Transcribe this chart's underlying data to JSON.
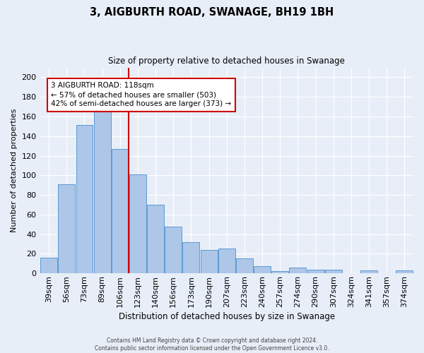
{
  "title": "3, AIGBURTH ROAD, SWANAGE, BH19 1BH",
  "subtitle": "Size of property relative to detached houses in Swanage",
  "xlabel": "Distribution of detached houses by size in Swanage",
  "ylabel": "Number of detached properties",
  "categories": [
    "39sqm",
    "56sqm",
    "73sqm",
    "89sqm",
    "106sqm",
    "123sqm",
    "140sqm",
    "156sqm",
    "173sqm",
    "190sqm",
    "207sqm",
    "223sqm",
    "240sqm",
    "257sqm",
    "274sqm",
    "290sqm",
    "307sqm",
    "324sqm",
    "341sqm",
    "357sqm",
    "374sqm"
  ],
  "values": [
    16,
    91,
    151,
    165,
    127,
    101,
    70,
    48,
    32,
    24,
    25,
    15,
    7,
    2,
    6,
    4,
    4,
    0,
    3,
    0,
    3
  ],
  "bar_color": "#aec6e8",
  "bar_edge_color": "#5b9bd5",
  "background_color": "#e8eef8",
  "grid_color": "#ffffff",
  "property_line_color": "#cc0000",
  "annotation_text": "3 AIGBURTH ROAD: 118sqm\n← 57% of detached houses are smaller (503)\n42% of semi-detached houses are larger (373) →",
  "annotation_box_color": "#ffffff",
  "annotation_box_edge": "#cc0000",
  "footer_line1": "Contains HM Land Registry data © Crown copyright and database right 2024.",
  "footer_line2": "Contains public sector information licensed under the Open Government Licence v3.0.",
  "ylim": [
    0,
    210
  ],
  "yticks": [
    0,
    20,
    40,
    60,
    80,
    100,
    120,
    140,
    160,
    180,
    200
  ]
}
